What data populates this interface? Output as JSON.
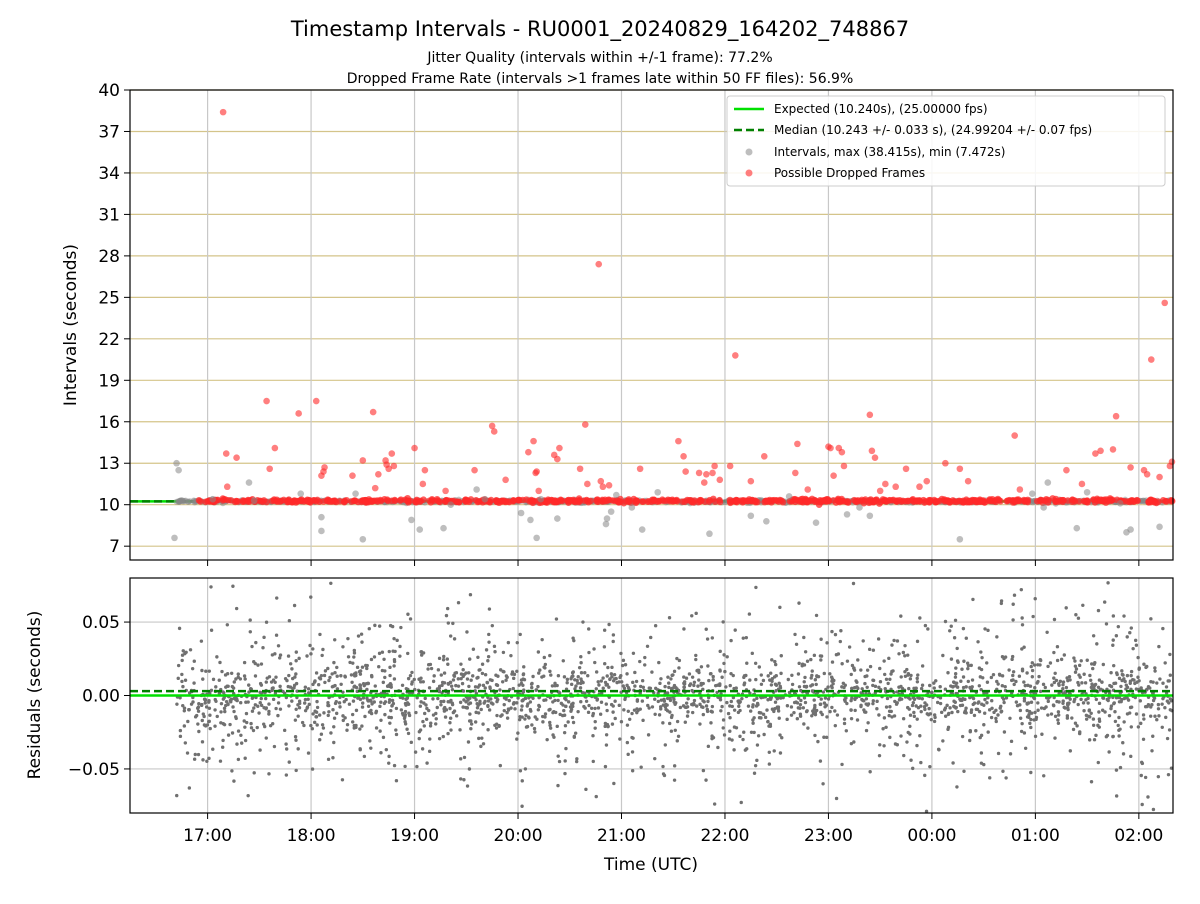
{
  "chart_data": [
    {
      "type": "scatter",
      "title": "Timestamp Intervals - RU0001_20240829_164202_748867",
      "subtitle_1": "Jitter Quality (intervals within +/-1 frame): 77.2%",
      "subtitle_2": "Dropped Frame Rate (intervals >1 frames late within 50 FF files): 56.9%",
      "ylabel": "Intervals (seconds)",
      "ylim": [
        6,
        40
      ],
      "yticks": [
        "7",
        "10",
        "13",
        "16",
        "19",
        "22",
        "25",
        "28",
        "31",
        "34",
        "37",
        "40"
      ],
      "xlim": [
        16.25,
        26.33
      ],
      "grid": true,
      "legend_position": "top-right",
      "legend": [
        {
          "label": "Expected (10.240s), (25.00000 fps)",
          "color": "#00e000",
          "style": "solid"
        },
        {
          "label": "Median (10.243 +/- 0.033 s), (24.99204 +/- 0.07 fps)",
          "color": "#008000",
          "style": "dashed"
        },
        {
          "label": "Intervals, max (38.415s), min (7.472s)",
          "color": "#888888",
          "style": "marker"
        },
        {
          "label": "Possible Dropped Frames",
          "color": "#ff2a2a",
          "style": "marker"
        }
      ],
      "expected_interval": 10.24,
      "median_interval": 10.243,
      "series": [
        {
          "name": "Intervals, max (38.415s), min (7.472s)",
          "color": "#888888",
          "x": [
            16.68,
            16.7,
            16.72,
            17.05,
            17.4,
            17.45,
            17.9,
            18.1,
            18.1,
            18.43,
            18.5,
            18.97,
            19.05,
            19.28,
            19.35,
            19.6,
            19.68,
            20.03,
            20.12,
            20.18,
            20.22,
            20.38,
            20.85,
            20.86,
            20.9,
            20.95,
            21.1,
            21.2,
            21.35,
            21.85,
            22.25,
            22.4,
            22.62,
            22.88,
            23.18,
            23.3,
            23.4,
            24.27,
            24.97,
            25.08,
            25.12,
            25.4,
            25.5,
            25.82,
            25.88,
            25.92,
            26.2
          ],
          "y": [
            7.6,
            13.0,
            12.5,
            10.4,
            11.6,
            10.3,
            10.8,
            9.1,
            8.1,
            10.8,
            7.5,
            8.9,
            8.2,
            8.3,
            10.0,
            11.1,
            10.4,
            9.4,
            8.9,
            7.6,
            10.4,
            9.0,
            8.6,
            9.0,
            9.5,
            10.7,
            9.8,
            8.2,
            10.9,
            7.9,
            9.2,
            8.8,
            10.6,
            8.7,
            9.3,
            9.8,
            9.2,
            7.5,
            10.8,
            9.8,
            11.6,
            8.3,
            10.9,
            10.1,
            8.0,
            8.2,
            8.4
          ]
        },
        {
          "name": "Possible Dropped Frames",
          "color": "#ff2a2a",
          "x": [
            17.15,
            17.18,
            17.19,
            17.28,
            17.57,
            17.6,
            17.65,
            18.05,
            18.12,
            18.13,
            17.88,
            18.1,
            18.4,
            18.5,
            18.6,
            18.62,
            18.65,
            18.72,
            18.73,
            18.75,
            18.78,
            18.8,
            19.0,
            19.08,
            19.1,
            19.3,
            19.58,
            19.75,
            19.77,
            19.88,
            20.1,
            20.15,
            20.17,
            20.18,
            20.2,
            20.35,
            20.38,
            20.4,
            20.6,
            20.65,
            20.67,
            20.78,
            20.8,
            20.82,
            20.88,
            21.18,
            21.55,
            21.6,
            21.62,
            21.75,
            21.8,
            21.82,
            21.88,
            21.9,
            21.95,
            22.05,
            22.1,
            22.25,
            22.38,
            22.68,
            22.7,
            22.8,
            23.0,
            23.02,
            23.05,
            23.1,
            23.13,
            23.15,
            23.4,
            23.42,
            23.45,
            23.5,
            23.55,
            23.65,
            23.75,
            23.88,
            23.95,
            24.13,
            24.27,
            24.35,
            24.8,
            24.85,
            25.3,
            25.45,
            25.58,
            25.63,
            25.75,
            25.78,
            25.92,
            26.05,
            26.08,
            26.12,
            26.2,
            26.25,
            26.3,
            26.32
          ],
          "y": [
            38.4,
            13.7,
            11.3,
            13.4,
            17.5,
            12.6,
            14.1,
            17.5,
            12.4,
            12.7,
            16.6,
            12.1,
            12.1,
            13.2,
            16.7,
            11.2,
            12.2,
            13.2,
            12.9,
            12.6,
            13.7,
            12.8,
            14.1,
            11.5,
            12.5,
            11.0,
            12.5,
            15.7,
            15.3,
            11.8,
            13.8,
            14.6,
            12.3,
            12.4,
            11.0,
            13.6,
            13.3,
            14.1,
            12.6,
            15.8,
            11.5,
            27.4,
            11.7,
            11.3,
            11.4,
            12.6,
            14.6,
            13.5,
            12.4,
            12.3,
            11.6,
            12.2,
            12.3,
            12.8,
            11.8,
            12.8,
            20.8,
            11.7,
            13.5,
            12.3,
            14.4,
            11.1,
            14.2,
            14.1,
            12.1,
            14.1,
            13.8,
            12.8,
            16.5,
            13.9,
            13.4,
            11.0,
            11.5,
            11.3,
            12.6,
            11.3,
            11.7,
            13.0,
            12.6,
            11.7,
            15.0,
            11.1,
            12.5,
            11.5,
            13.7,
            13.9,
            14.0,
            16.4,
            12.7,
            12.5,
            12.2,
            20.5,
            12.0,
            24.6,
            12.8,
            13.1
          ]
        }
      ]
    },
    {
      "type": "scatter",
      "xlabel": "Time (UTC)",
      "ylabel": "Residuals (seconds)",
      "ylim": [
        -0.08,
        0.08
      ],
      "yticks": [
        "−0.05",
        "0.00",
        "0.05"
      ],
      "xlim": [
        16.25,
        26.33
      ],
      "xtick_labels": [
        "17:00",
        "18:00",
        "19:00",
        "20:00",
        "21:00",
        "22:00",
        "23:00",
        "00:00",
        "01:00",
        "02:00"
      ],
      "xtick_values": [
        17,
        18,
        19,
        20,
        21,
        22,
        23,
        24,
        25,
        26
      ],
      "grid": true,
      "expected_residual": 0.0,
      "median_residual": 0.003,
      "residual_count": 2600,
      "residual_x_range": [
        16.7,
        26.33
      ],
      "series": [
        {
          "name": "",
          "color": "#707070"
        }
      ]
    }
  ],
  "colors": {
    "expected_line": "#00e000",
    "median_line": "#008000",
    "interval_marker": "#888888",
    "dropped_marker": "#ff2a2a",
    "residual_marker": "#707070",
    "hgrid_top": "#d4c48a",
    "vgrid": "#c8c8c8"
  }
}
